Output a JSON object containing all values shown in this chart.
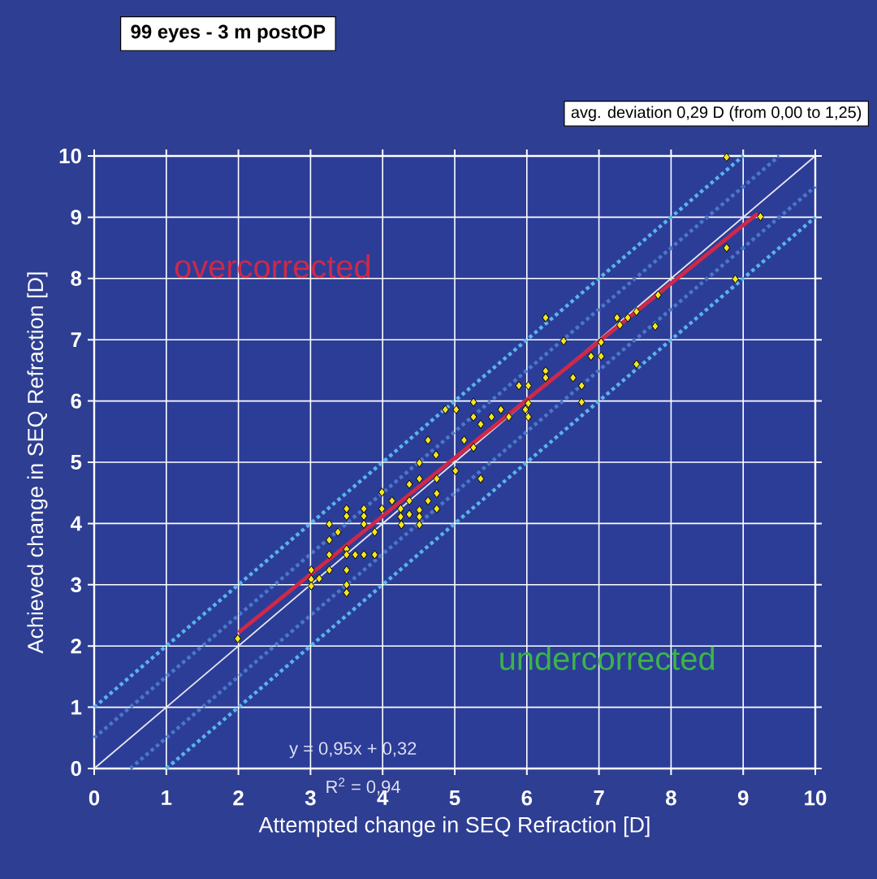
{
  "chart_data": {
    "type": "scatter",
    "title": "99 eyes - 3 m postOP",
    "subtitle": "avg. deviation 0,29 D (from 0,00 to 1,25)",
    "xlabel": "Attempted change in SEQ Refraction [D]",
    "ylabel": "Achieved change in SEQ Refraction [D]",
    "xlim": [
      0,
      10
    ],
    "ylim": [
      0,
      10
    ],
    "xticks": [
      0,
      1,
      2,
      3,
      4,
      5,
      6,
      7,
      8,
      9,
      10
    ],
    "yticks": [
      0,
      1,
      2,
      3,
      4,
      5,
      6,
      7,
      8,
      9,
      10
    ],
    "grid": true,
    "marker": "diamond",
    "annotations": [
      "overcorrected",
      "undercorrected",
      "y = 0,95x + 0,32",
      "R$^{2}$ = 0,94"
    ],
    "series": [
      {
        "type": "line",
        "color": "#5ab4ea",
        "line_style": "dotted",
        "marker": "none",
        "x": [
          0,
          9
        ],
        "values": [
          1,
          10
        ]
      },
      {
        "type": "line",
        "color": "#4a78c8",
        "line_style": "dotted",
        "marker": "none",
        "x": [
          0,
          9.5
        ],
        "values": [
          0.5,
          10
        ]
      },
      {
        "type": "line",
        "color": "#4a78c8",
        "line_style": "dotted",
        "marker": "none",
        "x": [
          0.5,
          10
        ],
        "values": [
          0,
          9.5
        ]
      },
      {
        "type": "line",
        "color": "#5ab4ea",
        "line_style": "dotted",
        "marker": "none",
        "x": [
          1,
          10
        ],
        "values": [
          0,
          9
        ]
      },
      {
        "type": "line",
        "color": "#e8e8f0",
        "line_style": "solid",
        "marker": "none",
        "x": [
          0,
          10
        ],
        "values": [
          0,
          10
        ]
      },
      {
        "type": "line",
        "color": "#d02848",
        "line_style": "solid",
        "marker": "none",
        "x": [
          2,
          9.2
        ],
        "values": [
          2.22,
          9.06
        ]
      },
      {
        "type": "scatter",
        "color": "#f5e61e",
        "x": [
          4.87,
          5.02,
          5.26,
          5.26,
          5.36,
          4.63,
          5.13,
          4.74,
          5.26,
          4.51,
          5.01,
          5.36,
          4.37,
          4.51,
          4.75,
          3.99,
          4.13,
          4.37,
          4.63,
          4.75,
          4.75,
          3.99,
          4.25,
          4.25,
          4.37,
          4.51,
          4.51,
          4.51,
          4.26,
          3.5,
          3.5,
          3.74,
          3.74,
          3.74,
          3.89,
          3.26,
          3.38,
          3.26,
          3.26,
          3.5,
          3.5,
          3.62,
          3.74,
          3.89,
          3.01,
          3.01,
          3.01,
          3.12,
          3.26,
          3.5,
          3.5,
          3.5,
          6.26,
          7.25,
          7.4,
          7.52,
          7.29,
          7.78,
          7.82,
          6.51,
          7.03,
          6.89,
          7.03,
          7.52,
          6.26,
          6.26,
          6.64,
          6.76,
          5.89,
          6.02,
          6.76,
          5.51,
          5.64,
          5.75,
          5.98,
          6.02,
          6.02,
          8.77,
          9.24,
          8.77,
          8.89,
          1.99
        ],
        "values": [
          5.86,
          5.86,
          5.98,
          5.74,
          5.62,
          5.36,
          5.36,
          5.12,
          5.24,
          4.99,
          4.86,
          4.73,
          4.64,
          4.73,
          4.73,
          4.51,
          4.37,
          4.37,
          4.37,
          4.49,
          4.24,
          4.24,
          4.24,
          4.11,
          4.15,
          4.22,
          4.11,
          3.98,
          3.98,
          4.24,
          4.12,
          4.24,
          4.12,
          3.99,
          3.86,
          3.99,
          3.86,
          3.73,
          3.49,
          3.58,
          3.49,
          3.49,
          3.49,
          3.49,
          3.24,
          3.09,
          2.98,
          3.1,
          3.24,
          3.24,
          3.0,
          2.87,
          7.36,
          7.36,
          7.36,
          7.46,
          7.24,
          7.22,
          7.73,
          6.98,
          6.96,
          6.73,
          6.73,
          6.6,
          6.49,
          6.38,
          6.38,
          6.25,
          6.25,
          6.25,
          5.98,
          5.74,
          5.86,
          5.74,
          5.86,
          5.74,
          5.96,
          9.98,
          9.01,
          8.5,
          7.99,
          2.12
        ]
      }
    ]
  }
}
